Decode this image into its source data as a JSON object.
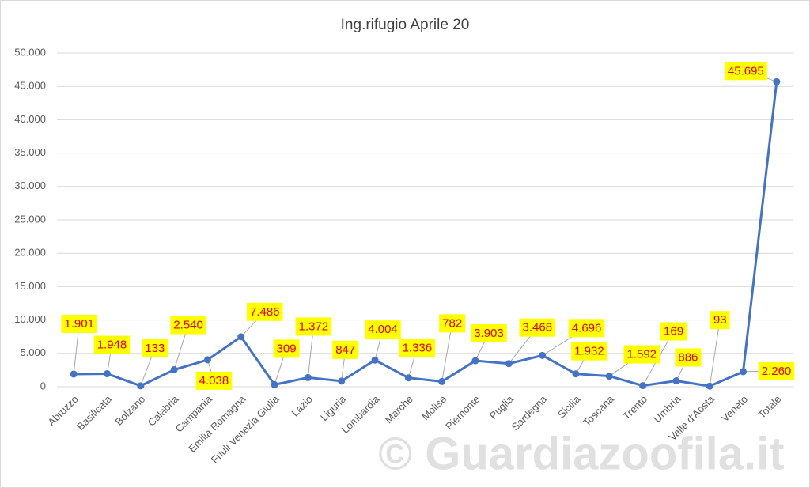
{
  "chart_data": {
    "type": "line",
    "title": "Ing.rifugio Aprile 20",
    "categories": [
      "Abruzzo",
      "Basilicata",
      "Bolzano",
      "Calabria",
      "Campania",
      "Emilia Romagna",
      "Friuli Venezia Giulia",
      "Lazio",
      "Liguria",
      "Lombardia",
      "Marche",
      "Molise",
      "Piemonte",
      "Puglia",
      "Sardegna",
      "Sicilia",
      "Toscana",
      "Trento",
      "Umbria",
      "Valle d'Aosta",
      "Veneto",
      "Totale"
    ],
    "values": [
      1901,
      1948,
      133,
      2540,
      4038,
      7486,
      309,
      1372,
      847,
      4004,
      1336,
      782,
      3903,
      3468,
      4696,
      1932,
      1592,
      169,
      886,
      93,
      2260,
      45695
    ],
    "value_labels": [
      "1.901",
      "1.948",
      "133",
      "2.540",
      "4.038",
      "7.486",
      "309",
      "1.372",
      "847",
      "4.004",
      "1.336",
      "782",
      "3.903",
      "3.468",
      "4.696",
      "1.932",
      "1.592",
      "169",
      "886",
      "93",
      "2.260",
      "45.695"
    ],
    "color": "#4472c4",
    "ylim": [
      0,
      50000
    ],
    "yticks": [
      0,
      {
        "value": 5000,
        "label": "5.000"
      },
      {
        "value": 10000,
        "label": "10.000"
      },
      {
        "value": 15000,
        "label": "15.000"
      },
      {
        "value": 20000,
        "label": "20.000"
      },
      {
        "value": 25000,
        "label": "25.000"
      },
      {
        "value": 30000,
        "label": "30.000"
      },
      {
        "value": 35000,
        "label": "35.000"
      },
      {
        "value": 40000,
        "label": "40.000"
      },
      {
        "value": 45000,
        "label": "45.000"
      },
      {
        "value": 50000,
        "label": "50.000"
      }
    ],
    "grid": true,
    "watermark": "© Guardiazoofila.it"
  }
}
